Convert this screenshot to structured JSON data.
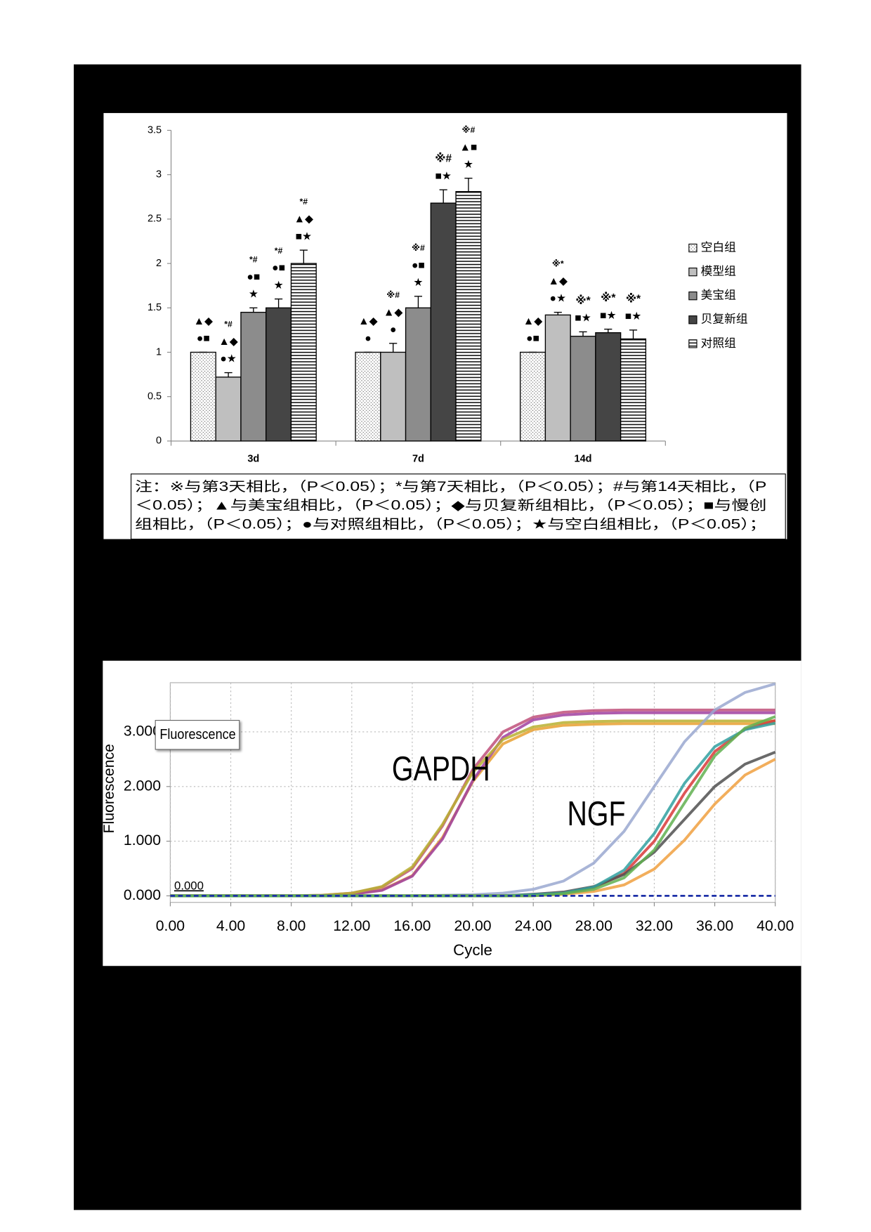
{
  "chart_data": [
    {
      "type": "bar",
      "categories": [
        "3d",
        "7d",
        "14d"
      ],
      "ylim": [
        0,
        3.5
      ],
      "yticks": [
        0,
        0.5,
        1,
        1.5,
        2,
        2.5,
        3,
        3.5
      ],
      "grid": false,
      "series": [
        {
          "name": "空白组",
          "color": "#ffffff",
          "pattern": "dots",
          "values": [
            1,
            1,
            1
          ],
          "errors": [
            0,
            0,
            0
          ],
          "annotations": [
            [
              "▲◆",
              "●■"
            ],
            [
              "▲◆",
              "●"
            ],
            [
              "▲◆",
              "●■"
            ]
          ]
        },
        {
          "name": "模型组",
          "color": "#bfbfbf",
          "values": [
            0.72,
            1.0,
            1.42
          ],
          "errors": [
            0.05,
            0.1,
            0.03
          ],
          "annotations": [
            [
              "*#",
              "▲◆",
              "●★"
            ],
            [
              "※#",
              "▲◆",
              "●"
            ],
            [
              "※*",
              "▲◆",
              "●★"
            ]
          ]
        },
        {
          "name": "美宝组",
          "color": "#8c8c8c",
          "values": [
            1.45,
            1.5,
            1.18
          ],
          "errors": [
            0.05,
            0.13,
            0.05
          ],
          "annotations": [
            [
              "*#",
              "●■",
              "★"
            ],
            [
              "※#",
              "●■",
              "★"
            ],
            [
              "※*",
              "■★"
            ]
          ]
        },
        {
          "name": "贝复新组",
          "color": "#454545",
          "values": [
            1.5,
            2.68,
            1.22
          ],
          "errors": [
            0.1,
            0.15,
            0.04
          ],
          "annotations": [
            [
              "*#",
              "●■",
              "★"
            ],
            [
              "※#",
              "■★"
            ],
            [
              "※*",
              "■★"
            ]
          ]
        },
        {
          "name": "对照组",
          "color": "#ffffff",
          "pattern": "hlines",
          "values": [
            2.0,
            2.81,
            1.15
          ],
          "errors": [
            0.15,
            0.15,
            0.1
          ],
          "annotations": [
            [
              "*#",
              "▲◆",
              "■★"
            ],
            [
              "※#",
              "▲■",
              "★"
            ],
            [
              "※*",
              "■★"
            ]
          ]
        }
      ],
      "note": [
        "注：※与第3天相比，（P＜0.05）；*与第7天相比，（P＜0.05）；#与第14天相比，（P",
        "＜0.05）；▲与美宝组相比，（P＜0.05）；◆与贝复新组相比，（P＜0.05）；■与慢创",
        "组相比，（P＜0.05）；●与对照组相比，（P＜0.05）；★与空白组相比，（P＜0.05）；"
      ]
    },
    {
      "type": "line",
      "x_label": "Cycle",
      "y_label": "Fluorescence",
      "legend_label": "Fluorescence",
      "annotations": [
        "GAPDH",
        "NGF"
      ],
      "annotation_color": "#e23a3a",
      "threshold": {
        "value": 0,
        "label": "0.000"
      },
      "threshold_color": "#1c2fa8",
      "grid": true,
      "x": [
        0,
        2,
        4,
        6,
        8,
        10,
        12,
        14,
        16,
        18,
        20,
        22,
        24,
        26,
        28,
        30,
        32,
        34,
        36,
        38,
        40
      ],
      "xlim": [
        0,
        40
      ],
      "xticks": [
        {
          "value": 0,
          "label": "0.00"
        },
        {
          "value": 4,
          "label": "4.00"
        },
        {
          "value": 8,
          "label": "8.00"
        },
        {
          "value": 12,
          "label": "12.00"
        },
        {
          "value": 16,
          "label": "16.00"
        },
        {
          "value": 20,
          "label": "20.00"
        },
        {
          "value": 24,
          "label": "24.00"
        },
        {
          "value": 28,
          "label": "28.00"
        },
        {
          "value": 32,
          "label": "32.00"
        },
        {
          "value": 36,
          "label": "36.00"
        },
        {
          "value": 40,
          "label": "40.00"
        }
      ],
      "ylim": [
        -0.12,
        3.9
      ],
      "yticks": [
        {
          "value": 0,
          "label": "0.000"
        },
        {
          "value": 1,
          "label": "1.000"
        },
        {
          "value": 2,
          "label": "2.000"
        },
        {
          "value": 3,
          "label": "3.000"
        }
      ],
      "series": [
        {
          "color": "#c0507a",
          "values": [
            0,
            0,
            0,
            0,
            0,
            0.01,
            0.05,
            0.16,
            0.5,
            1.28,
            2.31,
            3.0,
            3.27,
            3.36,
            3.39,
            3.4,
            3.4,
            3.4,
            3.4,
            3.4,
            3.4
          ]
        },
        {
          "color": "#e8a030",
          "values": [
            0,
            0,
            0,
            0,
            0,
            0,
            0.03,
            0.11,
            0.37,
            1.07,
            2.09,
            2.78,
            3.04,
            3.12,
            3.14,
            3.15,
            3.15,
            3.15,
            3.15,
            3.15,
            3.15
          ]
        },
        {
          "color": "#a040a0",
          "values": [
            0,
            0,
            0,
            0,
            0,
            0,
            0.03,
            0.1,
            0.36,
            1.04,
            2.11,
            2.9,
            3.22,
            3.31,
            3.34,
            3.35,
            3.35,
            3.35,
            3.35,
            3.35,
            3.35
          ]
        },
        {
          "color": "#b8b030",
          "values": [
            0,
            0,
            0,
            0,
            0,
            0.01,
            0.05,
            0.17,
            0.53,
            1.31,
            2.26,
            2.86,
            3.09,
            3.17,
            3.19,
            3.2,
            3.2,
            3.2,
            3.2,
            3.2,
            3.2
          ]
        },
        {
          "color": "#9aa8d0",
          "values": [
            0,
            0,
            0,
            0,
            0,
            0,
            0,
            0,
            0,
            0.01,
            0.02,
            0.05,
            0.12,
            0.27,
            0.6,
            1.18,
            2.0,
            2.82,
            3.4,
            3.72,
            3.88
          ]
        },
        {
          "color": "#d83a3a",
          "values": [
            0,
            0,
            0,
            0,
            0,
            0,
            0,
            0,
            0,
            0,
            0,
            0,
            0.02,
            0.05,
            0.15,
            0.41,
            1.0,
            1.88,
            2.64,
            3.05,
            3.21
          ]
        },
        {
          "color": "#505050",
          "values": [
            0,
            0,
            0,
            0,
            0,
            0,
            0,
            0,
            0,
            0,
            0,
            0,
            0.03,
            0.07,
            0.17,
            0.39,
            0.8,
            1.4,
            2.0,
            2.41,
            2.63
          ]
        },
        {
          "color": "#f0a040",
          "values": [
            0,
            0,
            0,
            0,
            0,
            0,
            0,
            0,
            0,
            0,
            0,
            0,
            0,
            0.03,
            0.08,
            0.2,
            0.49,
            1.02,
            1.68,
            2.21,
            2.5
          ]
        },
        {
          "color": "#30a0a0",
          "values": [
            0,
            0,
            0,
            0,
            0,
            0,
            0,
            0,
            0,
            0,
            0,
            0,
            0.02,
            0.05,
            0.16,
            0.47,
            1.14,
            2.06,
            2.73,
            3.04,
            3.16
          ]
        },
        {
          "color": "#60b050",
          "values": [
            0,
            0,
            0,
            0,
            0,
            0,
            0,
            0,
            0,
            0,
            0,
            0,
            0,
            0.04,
            0.12,
            0.33,
            0.84,
            1.7,
            2.56,
            3.07,
            3.28
          ]
        }
      ]
    }
  ]
}
